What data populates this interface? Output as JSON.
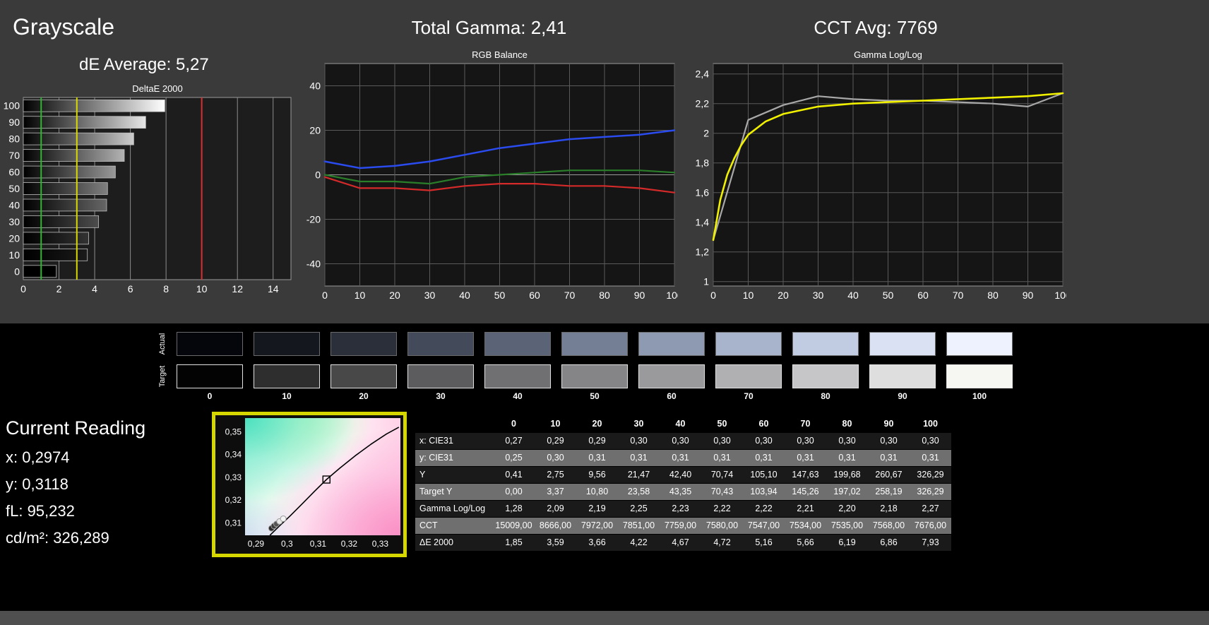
{
  "header": {
    "title": "Grayscale",
    "de_average": "dE Average: 5,27",
    "total_gamma": "Total Gamma: 2,41",
    "cct_avg": "CCT Avg: 7769"
  },
  "chart_data": [
    {
      "id": "deltae",
      "type": "bar",
      "title": "DeltaE 2000",
      "orientation": "horizontal",
      "categories": [
        "100",
        "90",
        "80",
        "70",
        "60",
        "50",
        "40",
        "30",
        "20",
        "10",
        "0"
      ],
      "levels": [
        100,
        90,
        80,
        70,
        60,
        50,
        40,
        30,
        20,
        10,
        0
      ],
      "values": [
        7.93,
        6.86,
        6.19,
        5.66,
        5.16,
        4.72,
        4.67,
        4.22,
        3.66,
        3.59,
        1.85
      ],
      "xlim": [
        0,
        15
      ],
      "xticks": [
        0,
        2,
        4,
        6,
        8,
        10,
        12,
        14
      ],
      "ref_lines": [
        {
          "value": 1,
          "color": "#2db82d"
        },
        {
          "value": 3,
          "color": "#d9d900"
        },
        {
          "value": 10,
          "color": "#d83030"
        }
      ]
    },
    {
      "id": "rgb",
      "type": "line",
      "title": "RGB Balance",
      "x": [
        0,
        10,
        20,
        30,
        40,
        50,
        60,
        70,
        80,
        90,
        100
      ],
      "xlim": [
        0,
        100
      ],
      "xticks": [
        0,
        10,
        20,
        30,
        40,
        50,
        60,
        70,
        80,
        90,
        100
      ],
      "ylim": [
        -50,
        50
      ],
      "yticks": [
        40,
        20,
        0,
        -20,
        -40
      ],
      "series": [
        {
          "name": "blue",
          "color": "#2a4bee",
          "width": 2.5,
          "values": [
            6,
            3,
            4,
            6,
            9,
            12,
            14,
            16,
            17,
            18,
            20
          ]
        },
        {
          "name": "green",
          "color": "#2a7e2a",
          "width": 2.2,
          "values": [
            0,
            -3,
            -3,
            -4,
            -1,
            0,
            1,
            2,
            2,
            2,
            1
          ]
        },
        {
          "name": "red",
          "color": "#d42a2a",
          "width": 2.2,
          "values": [
            -1,
            -6,
            -6,
            -7,
            -5,
            -4,
            -4,
            -5,
            -5,
            -6,
            -8
          ]
        }
      ]
    },
    {
      "id": "gamma",
      "type": "line",
      "title": "Gamma Log/Log",
      "x": [
        0,
        10,
        20,
        30,
        40,
        50,
        60,
        70,
        80,
        90,
        100
      ],
      "xlim": [
        0,
        100
      ],
      "xticks": [
        0,
        10,
        20,
        30,
        40,
        50,
        60,
        70,
        80,
        90,
        100
      ],
      "ylim": [
        0.97,
        2.47
      ],
      "yticks": [
        1,
        1.2,
        1.4,
        1.6,
        1.8,
        2,
        2.2,
        2.4
      ],
      "ytick_labels": [
        "1",
        "1,2",
        "1,4",
        "1,6",
        "1,8",
        "2",
        "2,2",
        "2,4"
      ],
      "series": [
        {
          "name": "measured",
          "color": "#a8a8a8",
          "width": 2.2,
          "values": [
            1.28,
            2.09,
            2.19,
            2.25,
            2.23,
            2.22,
            2.22,
            2.21,
            2.2,
            2.18,
            2.27
          ]
        },
        {
          "name": "target",
          "color": "#f0f000",
          "width": 2.6,
          "x": [
            0,
            2,
            4,
            6,
            8,
            10,
            15,
            20,
            30,
            40,
            50,
            60,
            70,
            80,
            90,
            100
          ],
          "values": [
            1.28,
            1.55,
            1.72,
            1.83,
            1.92,
            1.99,
            2.08,
            2.13,
            2.18,
            2.2,
            2.21,
            2.22,
            2.23,
            2.24,
            2.25,
            2.27
          ]
        }
      ]
    },
    {
      "id": "cie",
      "type": "scatter",
      "title": "",
      "xlim": [
        0.2865,
        0.3365
      ],
      "ylim": [
        0.3045,
        0.356
      ],
      "xticks": [
        0.29,
        0.3,
        0.31,
        0.32,
        0.33
      ],
      "xtick_labels": [
        "0,29",
        "0,3",
        "0,31",
        "0,32",
        "0,33"
      ],
      "yticks": [
        0.31,
        0.32,
        0.33,
        0.34,
        0.35
      ],
      "ytick_labels": [
        "0,31",
        "0,32",
        "0,33",
        "0,34",
        "0,35"
      ],
      "locus": [
        [
          0.2945,
          0.3045
        ],
        [
          0.2975,
          0.3085
        ],
        [
          0.301,
          0.313
        ],
        [
          0.305,
          0.3185
        ],
        [
          0.309,
          0.324
        ],
        [
          0.3127,
          0.329
        ],
        [
          0.317,
          0.334
        ],
        [
          0.322,
          0.3395
        ],
        [
          0.327,
          0.3445
        ],
        [
          0.332,
          0.349
        ],
        [
          0.336,
          0.352
        ]
      ],
      "target_point": {
        "x": 0.3127,
        "y": 0.329
      },
      "points": [
        {
          "x": 0.295,
          "y": 0.3076,
          "fill": "#2a2a2a"
        },
        {
          "x": 0.2958,
          "y": 0.3086,
          "fill": "#3a3a3a"
        },
        {
          "x": 0.2966,
          "y": 0.3095,
          "fill": "#555555"
        },
        {
          "x": 0.2976,
          "y": 0.3106,
          "fill": "#e8e8e8"
        },
        {
          "x": 0.2988,
          "y": 0.3118,
          "fill": "#f5f5f5"
        }
      ]
    }
  ],
  "swatches": {
    "row_labels": [
      "Actual",
      "Target"
    ],
    "column_labels": [
      "0",
      "10",
      "20",
      "30",
      "40",
      "50",
      "60",
      "70",
      "80",
      "90",
      "100"
    ],
    "actual_colors": [
      "#05060c",
      "#15171f",
      "#2b2f3a",
      "#434a59",
      "#5b6377",
      "#747e95",
      "#8e99b2",
      "#a8b3cc",
      "#c1cbe2",
      "#d9e1f3",
      "#edf2fe"
    ],
    "target_colors": [
      "#030303",
      "#2e2e2e",
      "#484848",
      "#5c5c5e",
      "#707072",
      "#858587",
      "#9a9a9c",
      "#b0b0b2",
      "#c6c6c8",
      "#dedede",
      "#f6f6f2"
    ]
  },
  "current_reading": {
    "title": "Current Reading",
    "x": "x: 0,2974",
    "y": "y: 0,3118",
    "fl": "fL: 95,232",
    "cd_m2": "cd/m²: 326,289"
  },
  "table": {
    "columns": [
      "",
      "0",
      "10",
      "20",
      "30",
      "40",
      "50",
      "60",
      "70",
      "80",
      "90",
      "100"
    ],
    "rows": [
      {
        "label": "x: CIE31",
        "values": [
          "0,27",
          "0,29",
          "0,29",
          "0,30",
          "0,30",
          "0,30",
          "0,30",
          "0,30",
          "0,30",
          "0,30",
          "0,30"
        ]
      },
      {
        "label": "y: CIE31",
        "values": [
          "0,25",
          "0,30",
          "0,31",
          "0,31",
          "0,31",
          "0,31",
          "0,31",
          "0,31",
          "0,31",
          "0,31",
          "0,31"
        ]
      },
      {
        "label": "Y",
        "values": [
          "0,41",
          "2,75",
          "9,56",
          "21,47",
          "42,40",
          "70,74",
          "105,10",
          "147,63",
          "199,68",
          "260,67",
          "326,29"
        ]
      },
      {
        "label": "Target Y",
        "values": [
          "0,00",
          "3,37",
          "10,80",
          "23,58",
          "43,35",
          "70,43",
          "103,94",
          "145,26",
          "197,02",
          "258,19",
          "326,29"
        ]
      },
      {
        "label": "Gamma Log/Log",
        "values": [
          "1,28",
          "2,09",
          "2,19",
          "2,25",
          "2,23",
          "2,22",
          "2,22",
          "2,21",
          "2,20",
          "2,18",
          "2,27"
        ]
      },
      {
        "label": "CCT",
        "values": [
          "15009,00",
          "8666,00",
          "7972,00",
          "7851,00",
          "7759,00",
          "7580,00",
          "7547,00",
          "7534,00",
          "7535,00",
          "7568,00",
          "7676,00"
        ]
      },
      {
        "label": "ΔE 2000",
        "values": [
          "1,85",
          "3,59",
          "3,66",
          "4,22",
          "4,67",
          "4,72",
          "5,16",
          "5,66",
          "6,19",
          "6,86",
          "7,93"
        ]
      }
    ]
  }
}
